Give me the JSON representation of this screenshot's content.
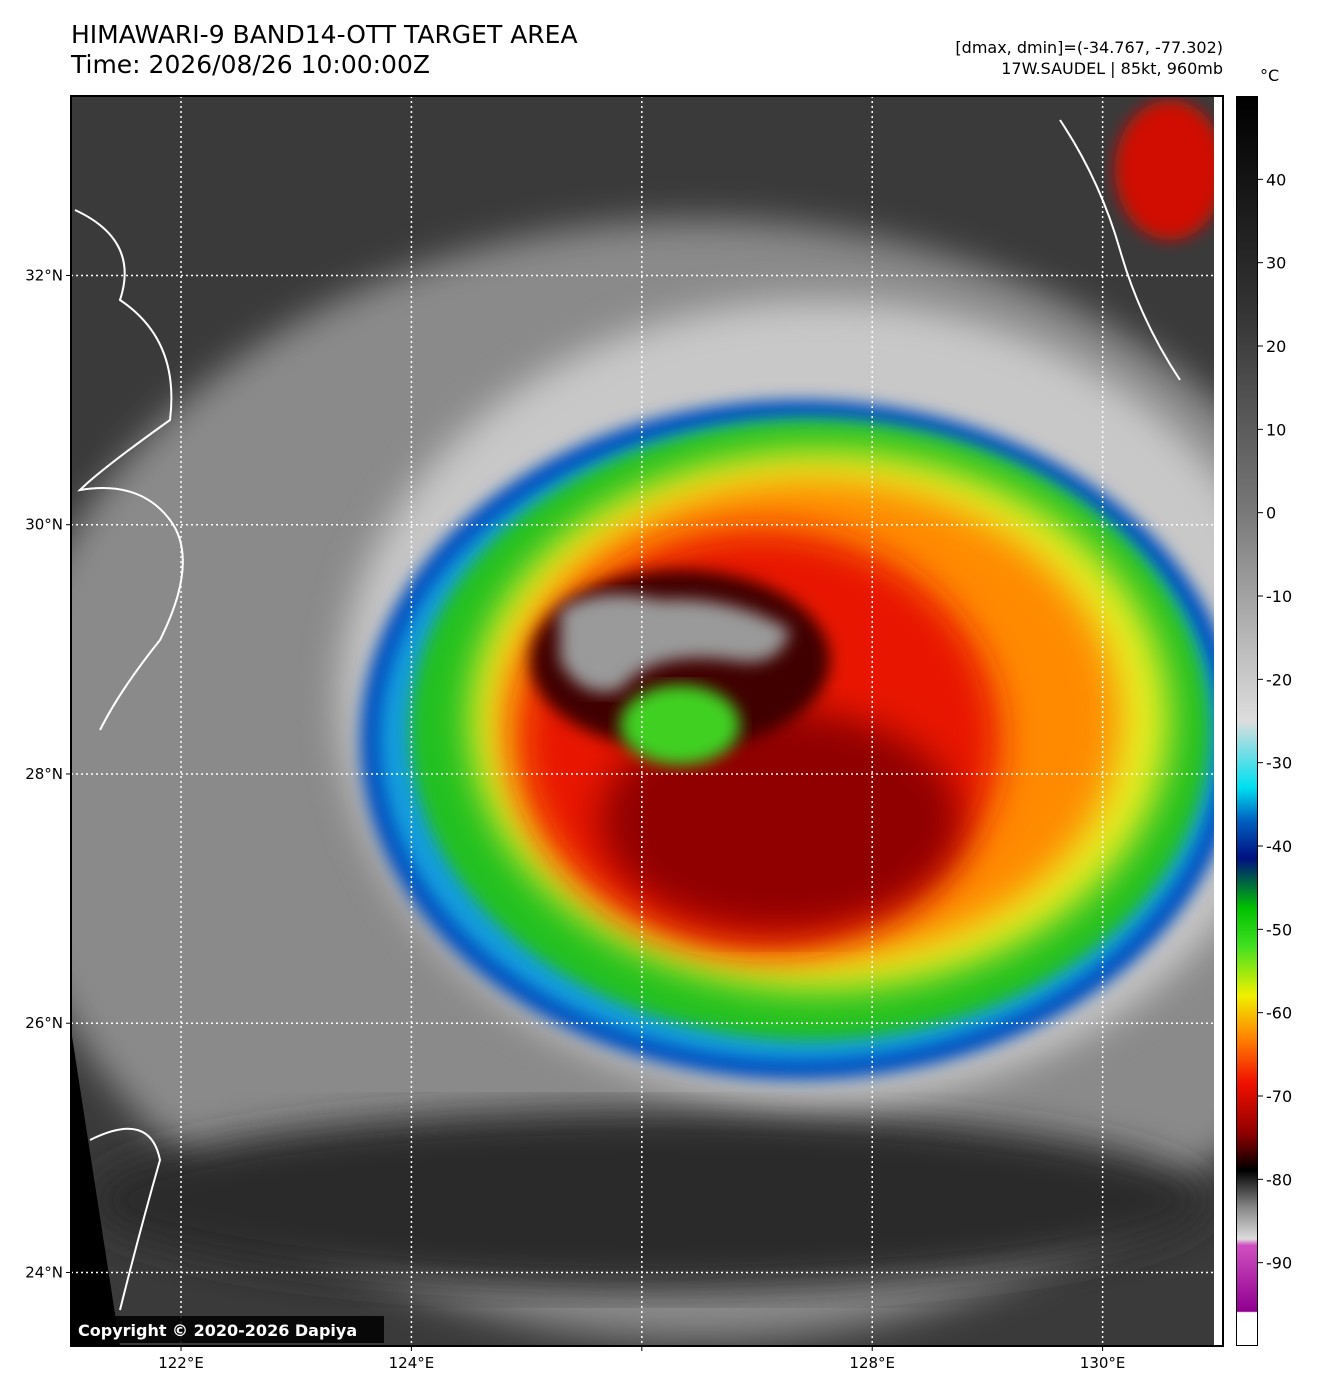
{
  "header": {
    "title": "HIMAWARI-9 BAND14-OTT TARGET AREA",
    "time": "Time: 2026/08/26 10:00:00Z",
    "range_info": "[dmax, dmin]=(-34.767, -77.302)",
    "storm_info": "17W.SAUDEL | 85kt, 960mb"
  },
  "map": {
    "lon_range": [
      121.045,
      131.045
    ],
    "lat_range": [
      23.41,
      33.44
    ],
    "lon_ticks": [
      {
        "value": 122,
        "label": "122°E"
      },
      {
        "value": 124,
        "label": "124°E"
      },
      {
        "value": 126,
        "label": null
      },
      {
        "value": 128,
        "label": "128°E"
      },
      {
        "value": 130,
        "label": "130°E"
      }
    ],
    "lat_ticks": [
      {
        "value": 24,
        "label": "24°N"
      },
      {
        "value": 26,
        "label": "26°N"
      },
      {
        "value": 28,
        "label": "28°N"
      },
      {
        "value": 30,
        "label": "30°N"
      },
      {
        "value": 32,
        "label": "32°N"
      }
    ]
  },
  "colorbar": {
    "unit": "°C",
    "range": [
      -100,
      50
    ],
    "ticks": [
      40,
      30,
      20,
      10,
      0,
      -10,
      -20,
      -30,
      -40,
      -50,
      -60,
      -70,
      -80,
      -90
    ]
  },
  "copyright": "Copyright © 2020-2026 Dapiya"
}
